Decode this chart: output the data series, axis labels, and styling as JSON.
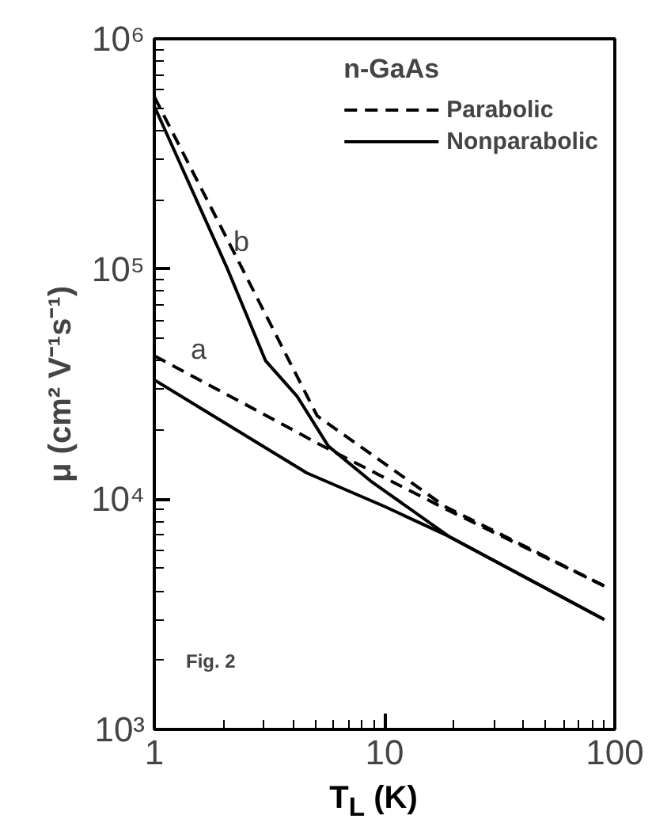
{
  "chart_data": {
    "type": "line",
    "xlabel": "T$_{L}$ (K)",
    "ylabel": "μ (cm² V⁻¹s⁻¹)",
    "legend_title": "n-GaAs",
    "legend": "top right",
    "log": "xy",
    "grid": false,
    "xlim": [
      1,
      100
    ],
    "ylim": [
      1000,
      1000000
    ],
    "xticks": [
      1,
      10,
      100
    ],
    "yticks": [
      {
        "value": 1000,
        "label": "10³"
      },
      {
        "value": 10000,
        "label": "10⁴"
      },
      {
        "value": 100000,
        "label": "10⁵"
      },
      {
        "value": 1000000,
        "label": "10⁶"
      }
    ],
    "series": [
      {
        "name": "Parabolic",
        "color": "#000000",
        "line_style": "dashed",
        "x": [
          1,
          2.2,
          5.1,
          18.3,
          90
        ],
        "values": [
          560000,
          120000,
          23000,
          9300,
          4200
        ]
      },
      {
        "name": "Nonparabolic",
        "color": "#000000",
        "line_style": "solid",
        "x": [
          1,
          2.08,
          3.04,
          4.17,
          5.7,
          8.7,
          19,
          90
        ],
        "values": [
          510000,
          100000,
          40000,
          28000,
          17000,
          12000,
          6900,
          3000
        ]
      },
      {
        "color": "#000000",
        "line_style": "dashed",
        "x": [
          1,
          2.85,
          5.4,
          18.3,
          90
        ],
        "values": [
          42000,
          24000,
          17000,
          9100,
          4200
        ]
      },
      {
        "color": "#000000",
        "line_style": "solid",
        "x": [
          1,
          4.6,
          10,
          19,
          90
        ],
        "values": [
          33000,
          13000,
          9300,
          6900,
          3000
        ]
      }
    ],
    "annotations": [
      "b",
      "a",
      "Fig. 2"
    ]
  }
}
